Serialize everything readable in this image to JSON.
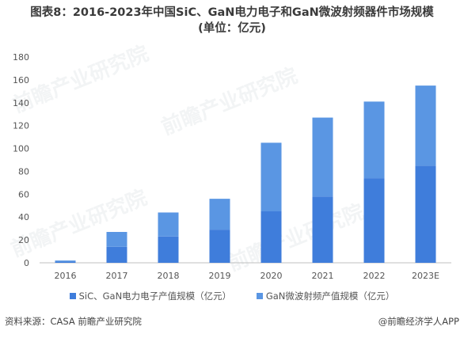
{
  "title": {
    "line1": "图表8：2016-2023年中国SiC、GaN电力电子和GaN微波射频器件市场规模",
    "line2": "(单位：亿元)"
  },
  "watermark_text": "前瞻产业研究院",
  "colors": {
    "sic_gan_power": "#3f7ddb",
    "gan_rf": "#5a96e3"
  },
  "chart_data": {
    "type": "bar",
    "stacked": true,
    "categories": [
      "2016",
      "2017",
      "2018",
      "2019",
      "2020",
      "2021",
      "2022",
      "2023E"
    ],
    "series": [
      {
        "name": "SiC、GaN电力电子产值规模（亿元）",
        "values": [
          1,
          14,
          23,
          29,
          45,
          58,
          74,
          85
        ]
      },
      {
        "name": "GaN微波射频产值规模（亿元）",
        "values": [
          1,
          13,
          21,
          27,
          60,
          69,
          67,
          70
        ]
      }
    ],
    "ylim": [
      0,
      180
    ],
    "yticks": [
      0,
      20,
      40,
      60,
      80,
      100,
      120,
      140,
      160,
      180
    ],
    "grid": false,
    "legend_position": "bottom"
  },
  "footer": {
    "source": "资料来源：CASA 前瞻产业研究院",
    "brand": "@前瞻经济学人APP"
  }
}
